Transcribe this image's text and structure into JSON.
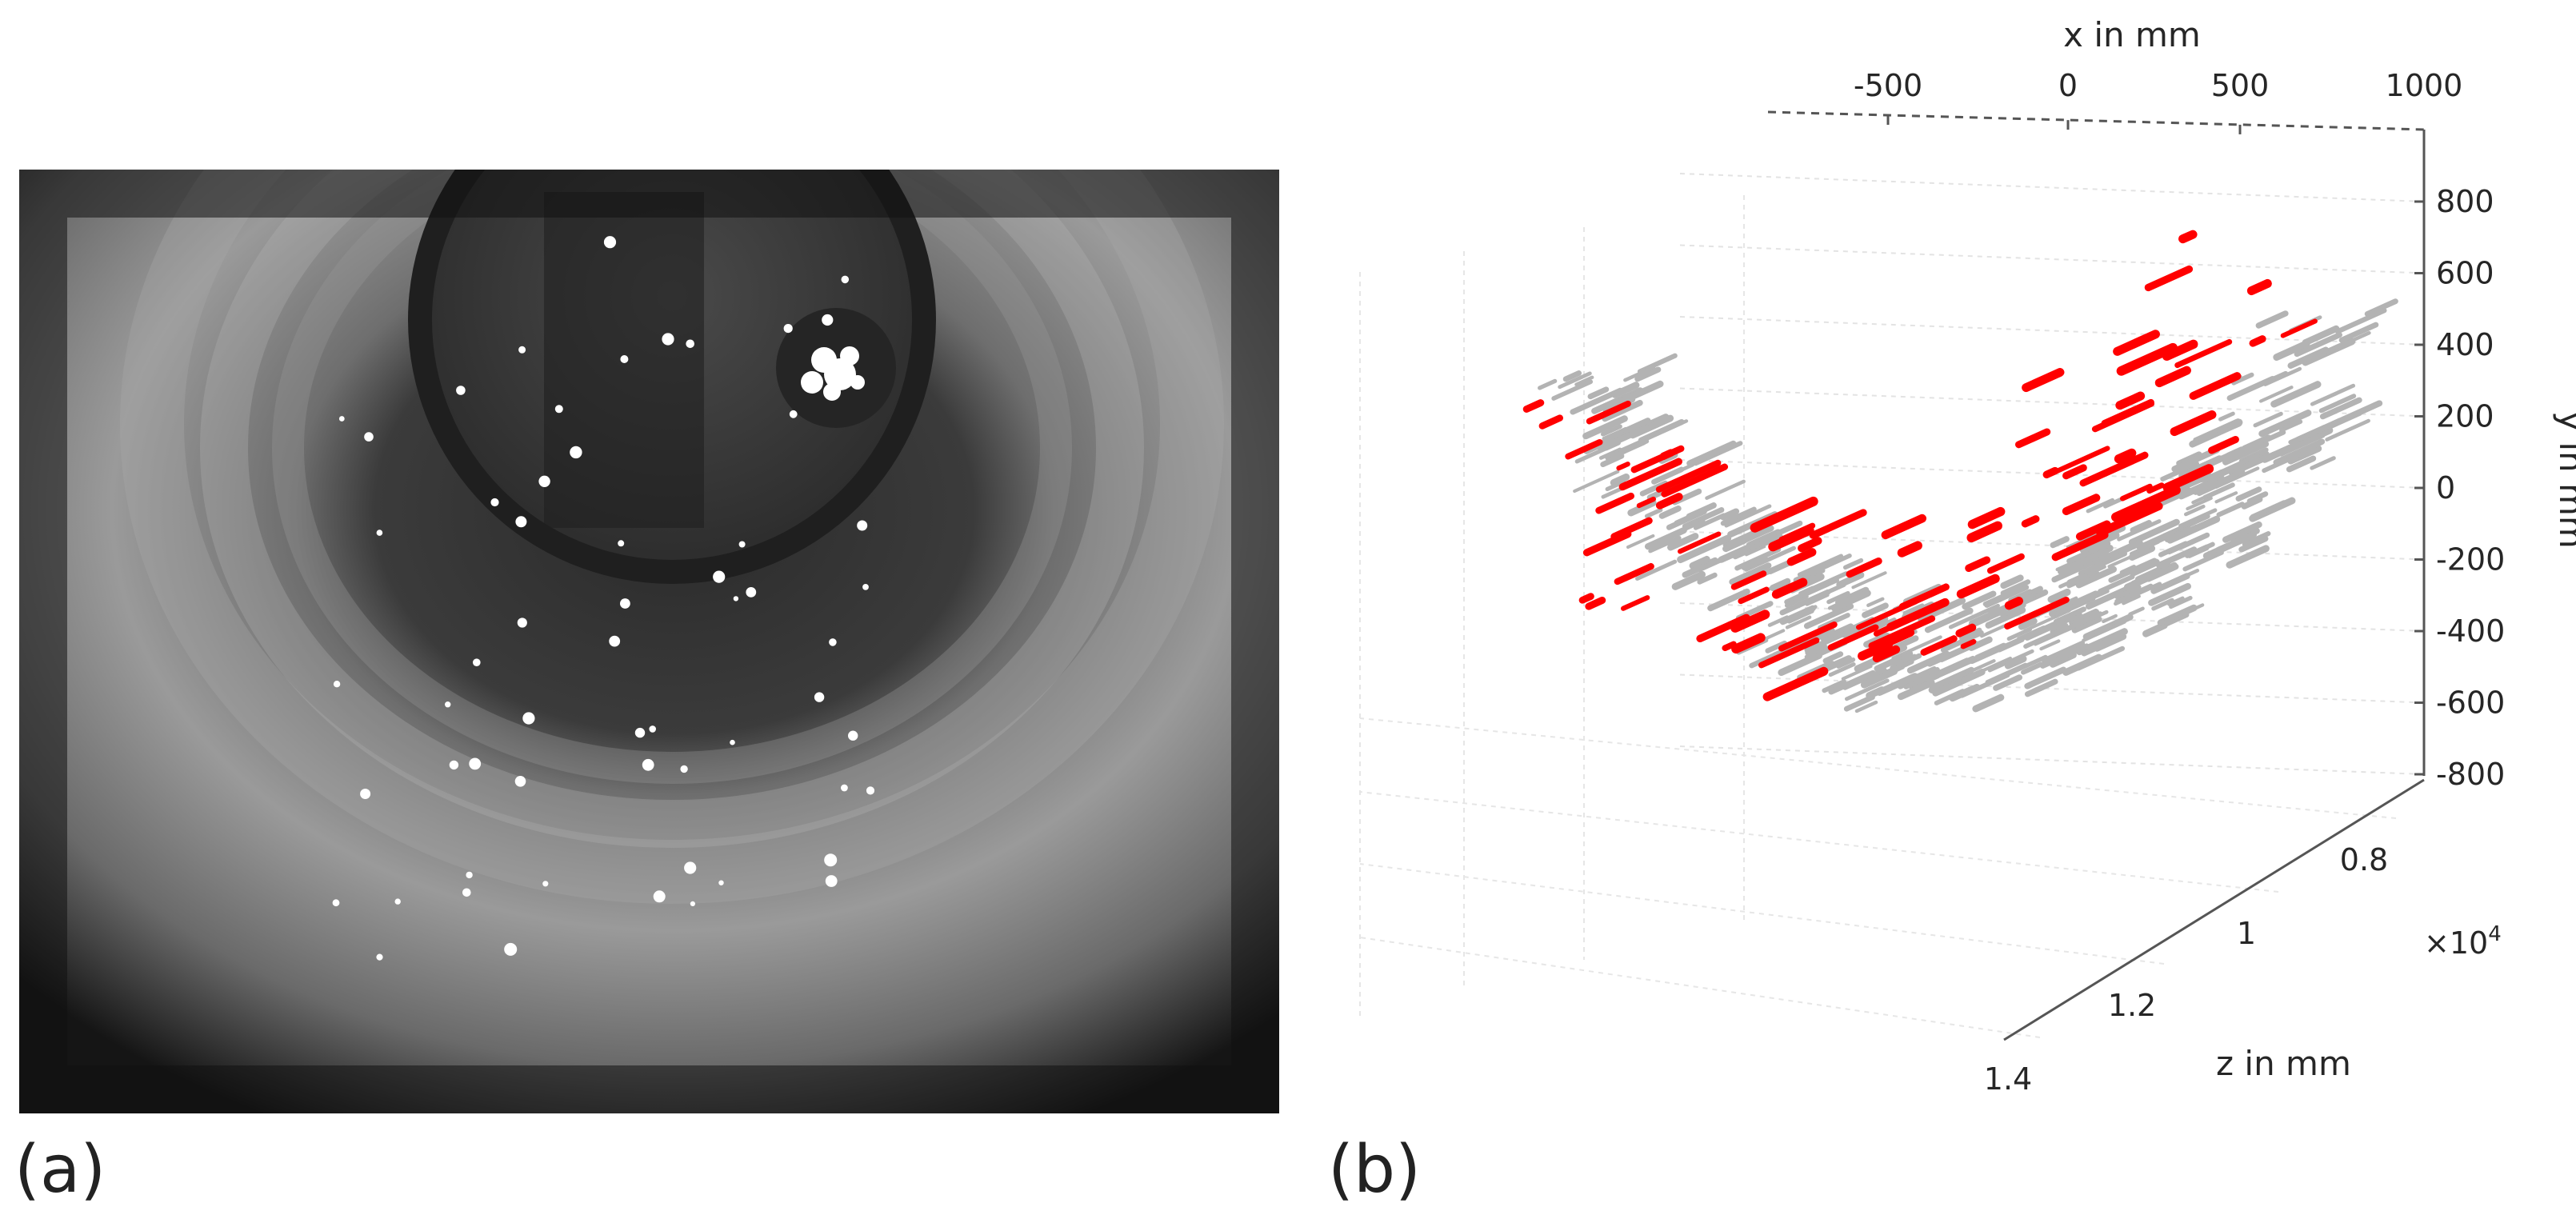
{
  "panels": [
    {
      "label": "(a)",
      "content": "camera image of tunnel"
    },
    {
      "label": "(b)",
      "content": "3D reconstruction"
    }
  ],
  "chart_data": {
    "type": "scatter",
    "xlabel": "x in mm",
    "ylabel": "y in mm",
    "zlabel": "z in mm",
    "x_ticks": [
      "-500",
      "0",
      "500",
      "1000"
    ],
    "y_ticks": [
      "800",
      "600",
      "400",
      "200",
      "0",
      "-200",
      "-400",
      "-600",
      "-800"
    ],
    "z_ticks": [
      "0.8",
      "1",
      "1.2",
      "1.4"
    ],
    "z_multiplier": "×10",
    "z_multiplier_exp": "4",
    "xlim": [
      -800,
      1000
    ],
    "ylim": [
      -800,
      800
    ],
    "zlim": [
      7000,
      14000
    ],
    "grid": true,
    "series": [
      {
        "color": "#b3b3b3"
      },
      {
        "color": "#ff0000"
      }
    ]
  },
  "colors": {
    "highlight": "#ff0000",
    "cloud": "#b3b3b3",
    "axis": "#262626"
  }
}
